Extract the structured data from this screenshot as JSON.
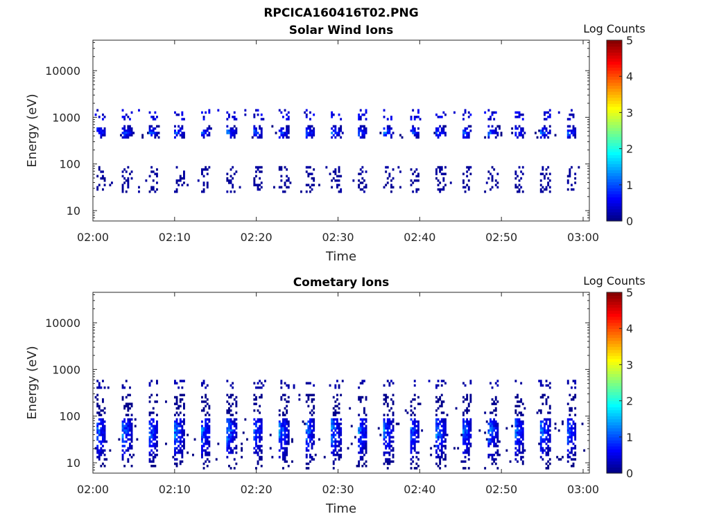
{
  "figure_title": "RPCICA160416T02.PNG",
  "chart_data": [
    {
      "type": "heatmap",
      "title": "Solar Wind Ions",
      "xlabel": "Time",
      "ylabel": "Energy (eV)",
      "x_ticks": [
        "02:00",
        "02:10",
        "02:20",
        "02:30",
        "02:40",
        "02:50",
        "03:00"
      ],
      "x_range_minutes": [
        0,
        60
      ],
      "y_scale": "log",
      "y_ticks": [
        10,
        100,
        1000,
        10000
      ],
      "ylim": [
        6,
        45000
      ],
      "colorbar": {
        "label": "Log Counts",
        "range": [
          0,
          5
        ],
        "ticks": [
          0,
          1,
          2,
          3,
          4,
          5
        ],
        "colormap": "jet"
      },
      "sweep_period_minutes": 3.2,
      "bands": [
        {
          "name_hint": "main",
          "energy_center_eV": 500,
          "energy_low_eV": 370,
          "energy_high_eV": 680,
          "peak_log_counts": 1.5
        },
        {
          "name_hint": "upper",
          "energy_center_eV": 1150,
          "energy_low_eV": 900,
          "energy_high_eV": 1500,
          "peak_log_counts": 0.7
        },
        {
          "name_hint": "low-scatter",
          "energy_center_eV": 45,
          "energy_low_eV": 25,
          "energy_high_eV": 90,
          "peak_log_counts": 0.2
        }
      ],
      "grid": false,
      "legend": "colorbar-right"
    },
    {
      "type": "heatmap",
      "title": "Cometary Ions",
      "xlabel": "Time",
      "ylabel": "Energy (eV)",
      "x_ticks": [
        "02:00",
        "02:10",
        "02:20",
        "02:30",
        "02:40",
        "02:50",
        "03:00"
      ],
      "x_range_minutes": [
        0,
        60
      ],
      "y_scale": "log",
      "y_ticks": [
        10,
        100,
        1000,
        10000
      ],
      "ylim": [
        6,
        45000
      ],
      "colorbar": {
        "label": "Log Counts",
        "range": [
          0,
          5
        ],
        "ticks": [
          0,
          1,
          2,
          3,
          4,
          5
        ],
        "colormap": "jet"
      },
      "sweep_period_minutes": 3.2,
      "bands": [
        {
          "name_hint": "upper",
          "energy_center_eV": 500,
          "energy_low_eV": 420,
          "energy_high_eV": 600,
          "peak_log_counts": 0.3
        },
        {
          "name_hint": "main",
          "energy_center_eV": 50,
          "energy_low_eV": 8,
          "energy_high_eV": 90,
          "peak_log_counts": 1.6
        },
        {
          "name_hint": "mid-scatter",
          "energy_center_eV": 170,
          "energy_low_eV": 110,
          "energy_high_eV": 300,
          "peak_log_counts": 0.1
        }
      ],
      "grid": false,
      "legend": "colorbar-right"
    }
  ]
}
